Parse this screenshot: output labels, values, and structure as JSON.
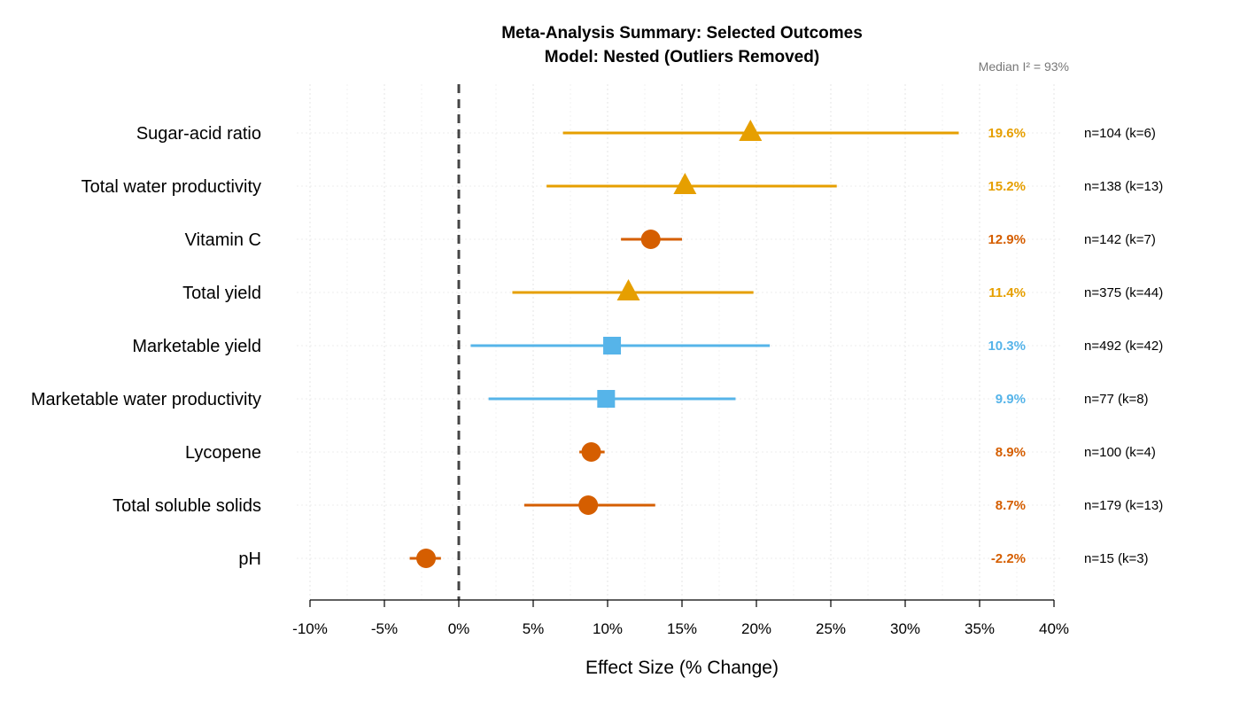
{
  "chart_data": {
    "type": "forest",
    "title": "Meta-Analysis Summary: Selected Outcomes",
    "subtitle": "Model: Nested (Outliers Removed)",
    "annotation": "Median I² = 93%",
    "xlabel": "Effect Size (% Change)",
    "xlim": [
      -10,
      40
    ],
    "xticks": [
      -10,
      -5,
      0,
      5,
      10,
      15,
      20,
      25,
      30,
      35,
      40
    ],
    "xtick_labels": [
      "-10%",
      "-5%",
      "0%",
      "5%",
      "10%",
      "15%",
      "20%",
      "25%",
      "30%",
      "35%",
      "40%"
    ],
    "reference_line": 0,
    "colors": {
      "orange": "#E69F00",
      "vermillion": "#D55E00",
      "skyblue": "#56B4E9"
    },
    "rows": [
      {
        "label": "Sugar-acid ratio",
        "estimate": 19.6,
        "lower": 7.0,
        "upper": 33.6,
        "value_label": "19.6%",
        "n_label": "n=104 (k=6)",
        "color": "#E69F00",
        "shape": "triangle"
      },
      {
        "label": "Total water productivity",
        "estimate": 15.2,
        "lower": 5.9,
        "upper": 25.4,
        "value_label": "15.2%",
        "n_label": "n=138 (k=13)",
        "color": "#E69F00",
        "shape": "triangle"
      },
      {
        "label": "Vitamin C",
        "estimate": 12.9,
        "lower": 10.9,
        "upper": 15.0,
        "value_label": "12.9%",
        "n_label": "n=142 (k=7)",
        "color": "#D55E00",
        "shape": "circle"
      },
      {
        "label": "Total yield",
        "estimate": 11.4,
        "lower": 3.6,
        "upper": 19.8,
        "value_label": "11.4%",
        "n_label": "n=375 (k=44)",
        "color": "#E69F00",
        "shape": "triangle"
      },
      {
        "label": "Marketable yield",
        "estimate": 10.3,
        "lower": 0.8,
        "upper": 20.9,
        "value_label": "10.3%",
        "n_label": "n=492 (k=42)",
        "color": "#56B4E9",
        "shape": "square"
      },
      {
        "label": "Marketable water productivity",
        "estimate": 9.9,
        "lower": 2.0,
        "upper": 18.6,
        "value_label": "9.9%",
        "n_label": "n=77 (k=8)",
        "color": "#56B4E9",
        "shape": "square"
      },
      {
        "label": "Lycopene",
        "estimate": 8.9,
        "lower": 8.1,
        "upper": 9.8,
        "value_label": "8.9%",
        "n_label": "n=100 (k=4)",
        "color": "#D55E00",
        "shape": "circle"
      },
      {
        "label": "Total soluble solids",
        "estimate": 8.7,
        "lower": 4.4,
        "upper": 13.2,
        "value_label": "8.7%",
        "n_label": "n=179 (k=13)",
        "color": "#D55E00",
        "shape": "circle"
      },
      {
        "label": "pH",
        "estimate": -2.2,
        "lower": -3.3,
        "upper": -1.2,
        "value_label": "-2.2%",
        "n_label": "n=15 (k=3)",
        "color": "#D55E00",
        "shape": "circle"
      }
    ]
  }
}
